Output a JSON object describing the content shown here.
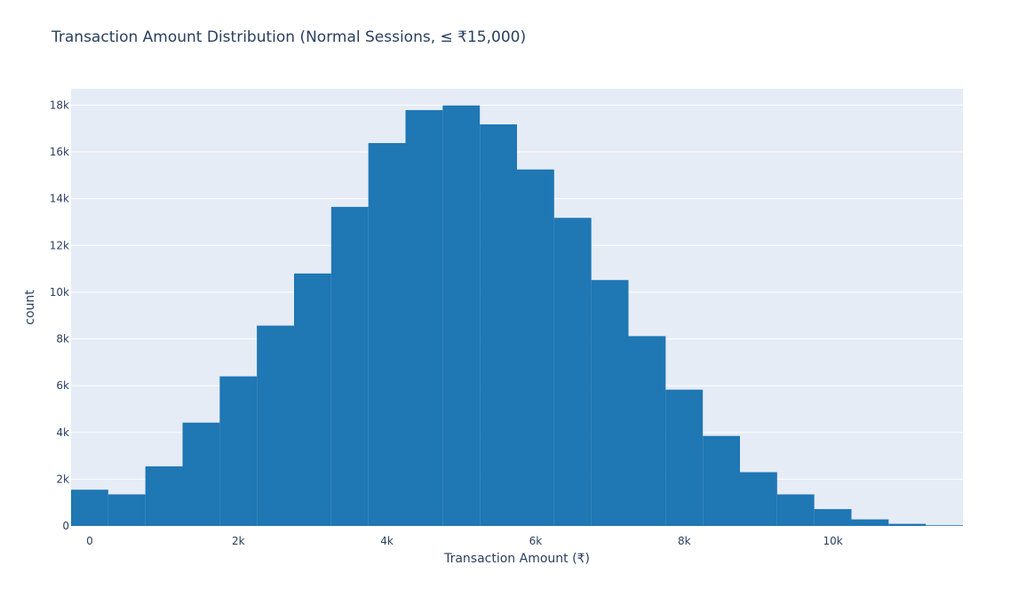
{
  "chart_data": {
    "type": "bar",
    "title": "Transaction Amount Distribution (Normal Sessions, ≤ ₹15,000)",
    "xlabel": "Transaction Amount (₹)",
    "ylabel": "count",
    "bin_width": 500,
    "xlim": [
      -250,
      11750
    ],
    "ylim": [
      0,
      18700
    ],
    "x_ticks": [
      0,
      2000,
      4000,
      6000,
      8000,
      10000
    ],
    "x_tick_labels": [
      "0",
      "2k",
      "4k",
      "6k",
      "8k",
      "10k"
    ],
    "y_ticks": [
      0,
      2000,
      4000,
      6000,
      8000,
      10000,
      12000,
      14000,
      16000,
      18000
    ],
    "y_tick_labels": [
      "0",
      "2k",
      "4k",
      "6k",
      "8k",
      "10k",
      "12k",
      "14k",
      "16k",
      "18k"
    ],
    "bins": [
      {
        "x0": -250,
        "x1": 250,
        "count": 1550
      },
      {
        "x0": 250,
        "x1": 750,
        "count": 1350
      },
      {
        "x0": 750,
        "x1": 1250,
        "count": 2550
      },
      {
        "x0": 1250,
        "x1": 1750,
        "count": 4420
      },
      {
        "x0": 1750,
        "x1": 2250,
        "count": 6400
      },
      {
        "x0": 2250,
        "x1": 2750,
        "count": 8570
      },
      {
        "x0": 2750,
        "x1": 3250,
        "count": 10800
      },
      {
        "x0": 3250,
        "x1": 3750,
        "count": 13650
      },
      {
        "x0": 3750,
        "x1": 4250,
        "count": 16380
      },
      {
        "x0": 4250,
        "x1": 4750,
        "count": 17790
      },
      {
        "x0": 4750,
        "x1": 5250,
        "count": 17990
      },
      {
        "x0": 5250,
        "x1": 5750,
        "count": 17180
      },
      {
        "x0": 5750,
        "x1": 6250,
        "count": 15250
      },
      {
        "x0": 6250,
        "x1": 6750,
        "count": 13180
      },
      {
        "x0": 6750,
        "x1": 7250,
        "count": 10520
      },
      {
        "x0": 7250,
        "x1": 7750,
        "count": 8120
      },
      {
        "x0": 7750,
        "x1": 8250,
        "count": 5830
      },
      {
        "x0": 8250,
        "x1": 8750,
        "count": 3850
      },
      {
        "x0": 8750,
        "x1": 9250,
        "count": 2300
      },
      {
        "x0": 9250,
        "x1": 9750,
        "count": 1350
      },
      {
        "x0": 9750,
        "x1": 10250,
        "count": 720
      },
      {
        "x0": 10250,
        "x1": 10750,
        "count": 280
      },
      {
        "x0": 10750,
        "x1": 11250,
        "count": 90
      },
      {
        "x0": 11250,
        "x1": 11750,
        "count": 30
      }
    ],
    "colors": {
      "bar": "#1f77b4",
      "plot_background": "#e5ecf6",
      "grid": "#ffffff",
      "text": "#2a3f5f"
    },
    "grid": true
  }
}
